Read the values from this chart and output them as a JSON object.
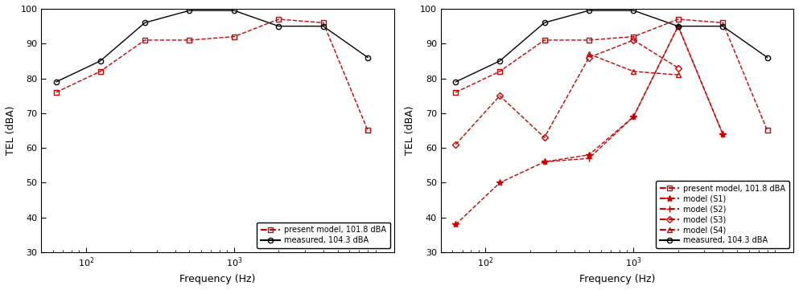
{
  "freq_main": [
    63,
    125,
    250,
    500,
    1000,
    2000,
    4000,
    8000
  ],
  "present_model": [
    76,
    82,
    91,
    91,
    92,
    97,
    96,
    65
  ],
  "measured": [
    79,
    85,
    96,
    99.5,
    99.5,
    95,
    95,
    86
  ],
  "freq_s1": [
    63,
    125,
    250,
    500,
    1000,
    2000,
    4000
  ],
  "s1": [
    38,
    50,
    56,
    58,
    69,
    95,
    64
  ],
  "freq_s2": [
    250,
    500,
    1000,
    2000,
    4000
  ],
  "s2": [
    56,
    57,
    69,
    95,
    64
  ],
  "freq_s3": [
    63,
    125,
    250,
    500,
    1000,
    2000
  ],
  "s3": [
    61,
    75,
    63,
    86,
    91,
    83
  ],
  "freq_s4": [
    500,
    1000,
    2000
  ],
  "s4": [
    87,
    82,
    81
  ],
  "ylim": [
    30,
    100
  ],
  "yticks": [
    30,
    40,
    50,
    60,
    70,
    80,
    90,
    100
  ],
  "xlim": [
    50,
    12000
  ],
  "xlabel": "Frequency (Hz)",
  "ylabel": "TEL (dBA)",
  "legend1": [
    "present model, 101.8 dBA",
    "measured, 104.3 dBA"
  ],
  "legend2": [
    "present model, 101.8 dBA",
    "model (S1)",
    "model (S2)",
    "model (S3)",
    "model (S4)",
    "measured, 104.3 dBA"
  ],
  "red_color": "#CC0000",
  "black_color": "#000000",
  "figsize": [
    9.93,
    3.61
  ],
  "dpi": 100
}
